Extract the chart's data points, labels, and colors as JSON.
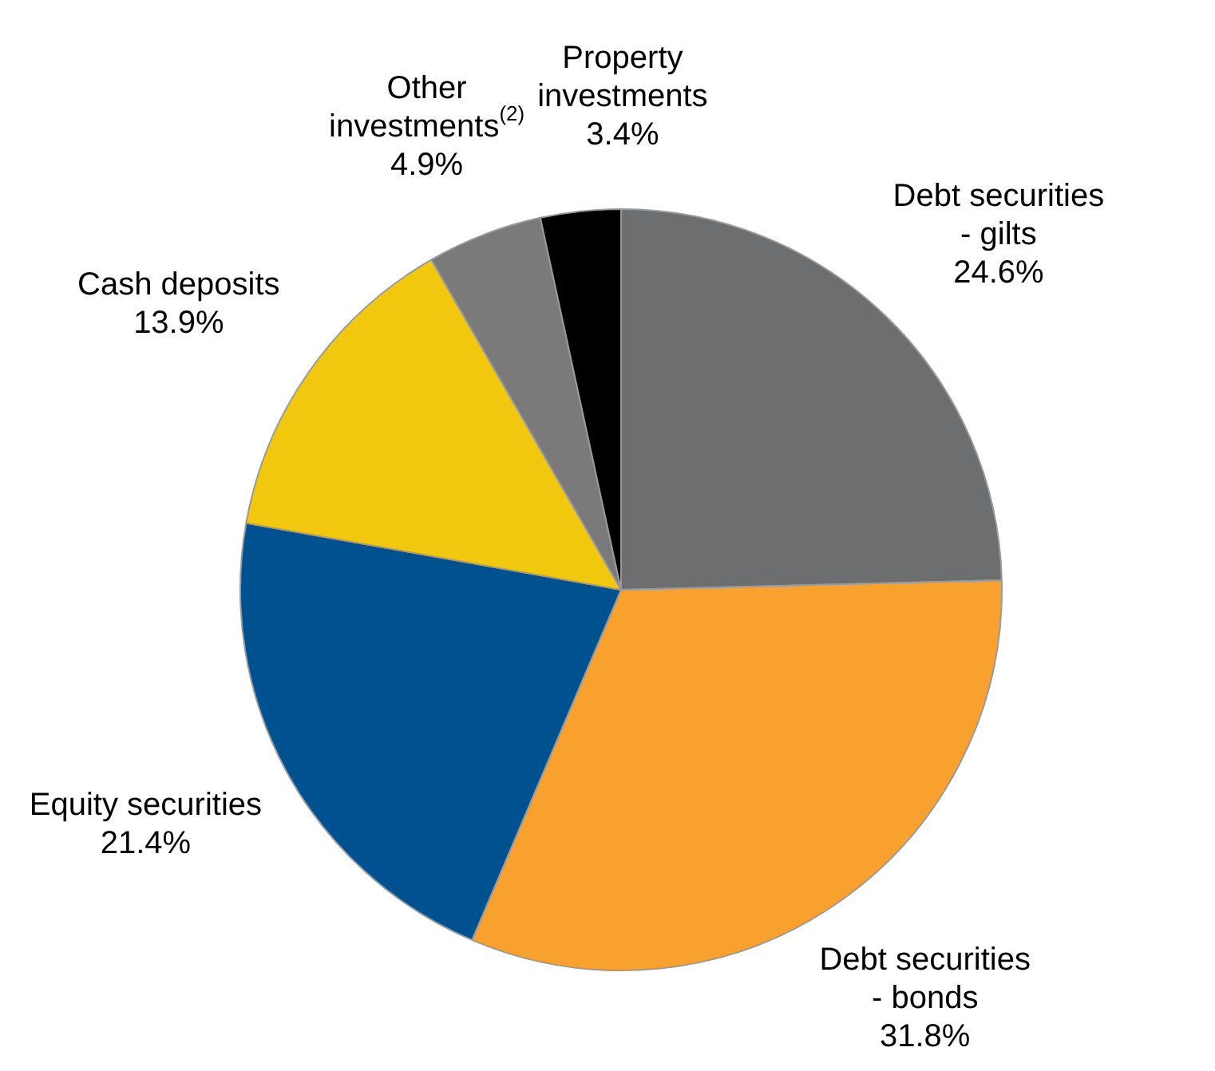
{
  "chart_data": {
    "type": "pie",
    "categories": [
      "Debt securities - gilts",
      "Debt securities - bonds",
      "Equity securities",
      "Cash deposits",
      "Other investments$^{(2)}$",
      "Property investments"
    ],
    "values": [
      24.6,
      31.8,
      21.4,
      13.9,
      4.9,
      3.4
    ],
    "colors": [
      "#6d6e70",
      "#f9a12e",
      "#00518f",
      "#f2c80f",
      "#7a7a7a",
      "#000000"
    ],
    "value_labels": [
      "24.6%",
      "31.8%",
      "21.4%",
      "13.9%",
      "4.9%",
      "3.4%"
    ],
    "legend": false
  }
}
